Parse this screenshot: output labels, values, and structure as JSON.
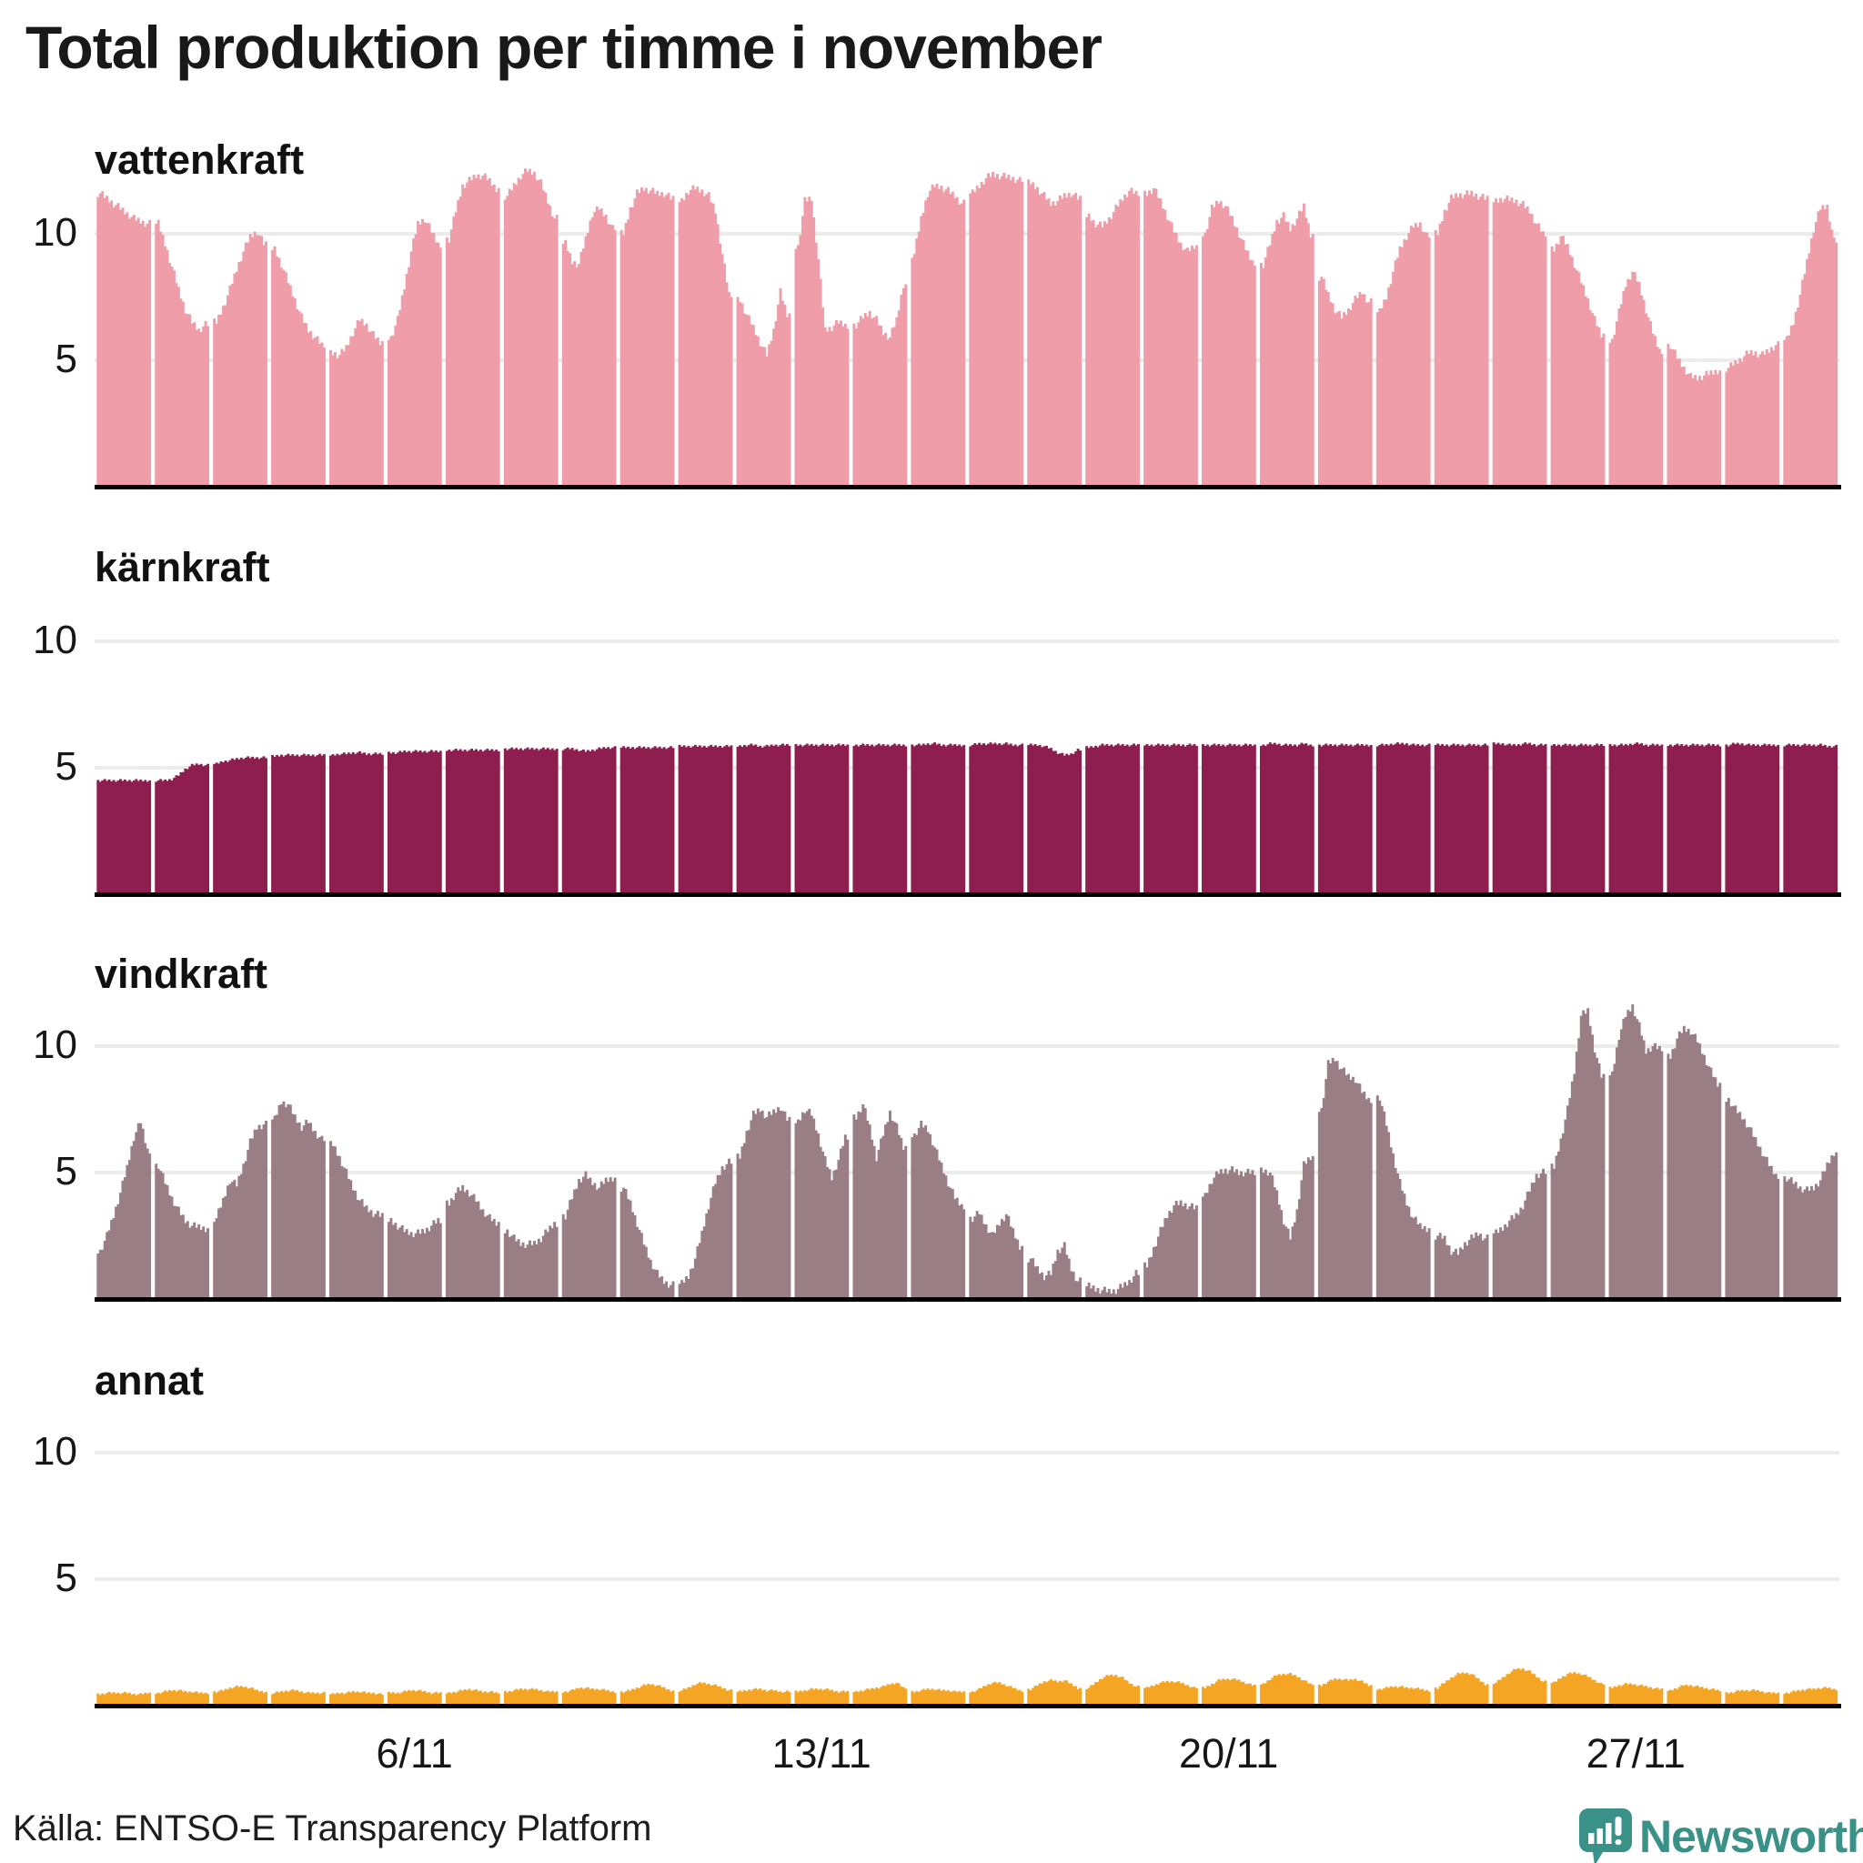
{
  "title": "Total produktion per timme i november",
  "source": "Källa: ENTSO-E Transparency Platform",
  "logo": {
    "brand": "Newsworthy",
    "color": "#3A9188"
  },
  "axis": {
    "y_ticks": [
      5,
      10
    ],
    "x_tick_labels": [
      "6/11",
      "13/11",
      "20/11",
      "27/11"
    ],
    "x_tick_days": [
      6,
      13,
      20,
      27
    ],
    "x_range_days": 30
  },
  "chart_data": [
    {
      "type": "area",
      "title": "vattenkraft",
      "color": "#EF9DA9",
      "ylim": [
        0,
        14
      ],
      "points_per_day": 8,
      "days": [
        [
          11.6,
          11.4,
          11.2,
          11.0,
          10.8,
          10.6,
          10.5,
          10.4
        ],
        [
          10.4,
          9.6,
          8.7,
          7.8,
          7.0,
          6.5,
          6.2,
          6.4
        ],
        [
          6.5,
          7.1,
          7.8,
          8.6,
          9.3,
          9.9,
          10.1,
          9.6
        ],
        [
          9.4,
          8.8,
          8.1,
          7.4,
          6.7,
          6.2,
          5.9,
          5.6
        ],
        [
          5.3,
          5.2,
          5.5,
          6.1,
          6.6,
          6.4,
          6.0,
          5.7
        ],
        [
          5.9,
          6.6,
          7.9,
          9.3,
          10.4,
          10.6,
          10.1,
          9.6
        ],
        [
          9.8,
          10.9,
          11.9,
          12.1,
          12.3,
          12.3,
          12.1,
          11.8
        ],
        [
          11.5,
          11.9,
          12.3,
          12.5,
          12.4,
          12.0,
          11.3,
          10.6
        ],
        [
          9.6,
          8.9,
          8.8,
          9.8,
          10.8,
          11.0,
          10.7,
          10.2
        ],
        [
          10.0,
          11.0,
          11.6,
          11.8,
          11.7,
          11.6,
          11.6,
          11.4
        ],
        [
          11.3,
          11.7,
          11.8,
          11.7,
          11.5,
          10.9,
          9.2,
          7.6
        ],
        [
          7.4,
          6.8,
          6.3,
          5.7,
          5.2,
          6.2,
          7.7,
          6.8
        ],
        [
          9.5,
          11.3,
          11.4,
          9.0,
          6.2,
          6.3,
          6.5,
          6.4
        ],
        [
          6.4,
          6.7,
          6.9,
          6.6,
          6.1,
          5.9,
          6.6,
          8.0
        ],
        [
          9.2,
          10.6,
          11.6,
          11.9,
          11.85,
          11.7,
          11.5,
          11.2
        ],
        [
          11.6,
          11.9,
          12.2,
          12.35,
          12.3,
          12.25,
          12.2,
          12.1
        ],
        [
          12.0,
          11.8,
          11.5,
          11.2,
          11.3,
          11.5,
          11.6,
          11.4
        ],
        [
          10.7,
          10.4,
          10.3,
          10.6,
          11.0,
          11.4,
          11.7,
          11.6
        ],
        [
          11.6,
          11.8,
          11.3,
          10.7,
          10.1,
          9.6,
          9.3,
          9.5
        ],
        [
          10.0,
          11.0,
          11.3,
          11.1,
          10.6,
          10.0,
          9.4,
          8.9
        ],
        [
          8.8,
          9.6,
          10.5,
          10.7,
          10.2,
          10.6,
          11.1,
          10.0
        ],
        [
          8.3,
          7.6,
          7.0,
          6.7,
          7.0,
          7.4,
          7.7,
          7.3
        ],
        [
          6.9,
          7.5,
          8.5,
          9.4,
          9.9,
          10.3,
          10.4,
          9.9
        ],
        [
          10.0,
          10.9,
          11.4,
          11.55,
          11.55,
          11.6,
          11.5,
          11.4
        ],
        [
          11.3,
          11.4,
          11.35,
          11.3,
          11.15,
          10.9,
          10.4,
          10.0
        ],
        [
          9.4,
          9.9,
          9.5,
          8.8,
          8.1,
          7.4,
          6.6,
          6.0
        ],
        [
          5.8,
          6.9,
          8.0,
          8.5,
          8.0,
          7.0,
          6.1,
          5.4
        ],
        [
          5.6,
          5.1,
          4.7,
          4.35,
          4.3,
          4.4,
          4.5,
          4.6
        ],
        [
          4.7,
          4.9,
          5.1,
          5.3,
          5.3,
          5.2,
          5.4,
          5.6
        ],
        [
          5.8,
          6.5,
          7.6,
          8.9,
          10.2,
          11.0,
          11.1,
          9.7
        ]
      ]
    },
    {
      "type": "area",
      "title": "kärnkraft",
      "color": "#8E1E4F",
      "ylim": [
        0,
        14
      ],
      "points_per_day": 8,
      "days": [
        [
          4.5,
          4.5,
          4.5,
          4.5,
          4.5,
          4.5,
          4.5,
          4.5
        ],
        [
          4.5,
          4.5,
          4.55,
          4.7,
          4.95,
          5.1,
          5.15,
          5.1
        ],
        [
          5.15,
          5.25,
          5.3,
          5.35,
          5.4,
          5.4,
          5.4,
          5.4
        ],
        [
          5.45,
          5.5,
          5.5,
          5.5,
          5.5,
          5.5,
          5.5,
          5.5
        ],
        [
          5.5,
          5.55,
          5.55,
          5.6,
          5.6,
          5.55,
          5.55,
          5.55
        ],
        [
          5.6,
          5.6,
          5.65,
          5.65,
          5.65,
          5.65,
          5.65,
          5.65
        ],
        [
          5.7,
          5.7,
          5.7,
          5.7,
          5.7,
          5.7,
          5.7,
          5.7
        ],
        [
          5.75,
          5.75,
          5.75,
          5.75,
          5.75,
          5.75,
          5.75,
          5.75
        ],
        [
          5.75,
          5.75,
          5.7,
          5.65,
          5.7,
          5.75,
          5.8,
          5.8
        ],
        [
          5.8,
          5.8,
          5.8,
          5.8,
          5.8,
          5.8,
          5.8,
          5.8
        ],
        [
          5.85,
          5.85,
          5.85,
          5.85,
          5.85,
          5.85,
          5.85,
          5.85
        ],
        [
          5.85,
          5.9,
          5.9,
          5.85,
          5.85,
          5.9,
          5.9,
          5.9
        ],
        [
          5.9,
          5.9,
          5.9,
          5.9,
          5.9,
          5.9,
          5.9,
          5.9
        ],
        [
          5.9,
          5.9,
          5.9,
          5.9,
          5.9,
          5.9,
          5.9,
          5.9
        ],
        [
          5.9,
          5.9,
          5.95,
          5.95,
          5.9,
          5.9,
          5.9,
          5.9
        ],
        [
          5.9,
          5.95,
          5.95,
          5.95,
          5.95,
          5.95,
          5.9,
          5.9
        ],
        [
          5.9,
          5.9,
          5.85,
          5.75,
          5.6,
          5.5,
          5.55,
          5.7
        ],
        [
          5.8,
          5.85,
          5.9,
          5.9,
          5.9,
          5.9,
          5.9,
          5.9
        ],
        [
          5.9,
          5.9,
          5.9,
          5.9,
          5.9,
          5.9,
          5.9,
          5.9
        ],
        [
          5.9,
          5.9,
          5.9,
          5.9,
          5.9,
          5.9,
          5.9,
          5.9
        ],
        [
          5.9,
          5.95,
          5.95,
          5.9,
          5.9,
          5.9,
          5.95,
          5.9
        ],
        [
          5.9,
          5.9,
          5.9,
          5.9,
          5.9,
          5.9,
          5.9,
          5.9
        ],
        [
          5.9,
          5.9,
          5.95,
          5.95,
          5.95,
          5.9,
          5.9,
          5.9
        ],
        [
          5.9,
          5.9,
          5.9,
          5.9,
          5.9,
          5.9,
          5.9,
          5.9
        ],
        [
          5.95,
          5.95,
          5.9,
          5.9,
          5.95,
          5.95,
          5.9,
          5.9
        ],
        [
          5.9,
          5.9,
          5.9,
          5.9,
          5.9,
          5.9,
          5.9,
          5.9
        ],
        [
          5.9,
          5.9,
          5.9,
          5.95,
          5.95,
          5.9,
          5.9,
          5.9
        ],
        [
          5.9,
          5.9,
          5.9,
          5.9,
          5.9,
          5.9,
          5.9,
          5.9
        ],
        [
          5.9,
          5.95,
          5.95,
          5.9,
          5.9,
          5.9,
          5.9,
          5.9
        ],
        [
          5.9,
          5.9,
          5.9,
          5.9,
          5.9,
          5.9,
          5.85,
          5.85
        ]
      ]
    },
    {
      "type": "area",
      "title": "vindkraft",
      "color": "#9A7E85",
      "ylim": [
        0,
        14
      ],
      "points_per_day": 8,
      "days": [
        [
          1.9,
          2.5,
          3.3,
          4.2,
          5.2,
          6.4,
          7.0,
          5.9
        ],
        [
          5.3,
          4.6,
          4.0,
          3.5,
          3.1,
          2.9,
          2.85,
          2.8
        ],
        [
          3.2,
          3.9,
          4.7,
          4.5,
          5.3,
          6.2,
          6.8,
          6.9
        ],
        [
          7.1,
          7.8,
          7.7,
          7.2,
          6.8,
          7.0,
          6.6,
          6.3
        ],
        [
          6.1,
          5.6,
          5.0,
          4.4,
          3.9,
          3.6,
          3.4,
          3.3
        ],
        [
          3.1,
          2.9,
          2.7,
          2.6,
          2.6,
          2.7,
          2.9,
          3.1
        ],
        [
          3.8,
          4.2,
          4.4,
          4.2,
          3.9,
          3.5,
          3.2,
          3.0
        ],
        [
          2.7,
          2.4,
          2.2,
          2.15,
          2.2,
          2.4,
          2.7,
          3.0
        ],
        [
          3.3,
          4.0,
          4.7,
          4.9,
          4.6,
          4.4,
          4.7,
          4.8
        ],
        [
          4.4,
          3.8,
          3.0,
          2.2,
          1.5,
          1.0,
          0.7,
          0.55
        ],
        [
          0.6,
          0.9,
          1.6,
          2.6,
          3.7,
          4.6,
          5.2,
          5.4
        ],
        [
          5.6,
          6.6,
          7.3,
          7.5,
          7.2,
          7.4,
          7.6,
          7.1
        ],
        [
          7.0,
          7.5,
          7.3,
          6.5,
          5.5,
          4.8,
          5.5,
          6.4
        ],
        [
          7.2,
          7.7,
          6.8,
          5.6,
          6.5,
          7.4,
          6.8,
          6.0
        ],
        [
          6.5,
          6.9,
          6.7,
          6.0,
          5.3,
          4.6,
          4.0,
          3.7
        ],
        [
          3.2,
          3.4,
          2.9,
          2.5,
          3.0,
          3.35,
          2.7,
          2.1
        ],
        [
          1.6,
          1.2,
          0.9,
          1.0,
          1.9,
          2.1,
          1.2,
          0.7
        ],
        [
          0.5,
          0.4,
          0.35,
          0.3,
          0.35,
          0.5,
          0.7,
          1.0
        ],
        [
          1.3,
          2.0,
          2.7,
          3.3,
          3.7,
          3.8,
          3.7,
          3.6
        ],
        [
          4.1,
          4.7,
          5.0,
          5.1,
          5.1,
          5.0,
          5.0,
          5.0
        ],
        [
          5.1,
          5.0,
          4.2,
          3.1,
          2.4,
          3.5,
          5.3,
          5.6
        ],
        [
          7.5,
          9.3,
          9.5,
          9.1,
          8.8,
          8.7,
          8.2,
          7.9
        ],
        [
          8.0,
          6.9,
          5.7,
          4.6,
          3.8,
          3.2,
          2.9,
          2.8
        ],
        [
          2.5,
          2.4,
          1.9,
          1.8,
          2.2,
          2.4,
          2.6,
          2.4
        ],
        [
          2.6,
          2.8,
          3.1,
          3.3,
          3.7,
          4.3,
          4.9,
          5.0
        ],
        [
          5.2,
          6.3,
          7.5,
          9.0,
          11.2,
          11.4,
          9.9,
          8.8
        ],
        [
          8.9,
          10.4,
          11.2,
          11.6,
          10.8,
          9.8,
          10.0,
          9.9
        ],
        [
          9.6,
          10.3,
          10.7,
          10.6,
          10.2,
          9.6,
          9.0,
          8.5
        ],
        [
          7.9,
          7.5,
          7.2,
          6.8,
          6.3,
          5.8,
          5.3,
          4.9
        ],
        [
          4.8,
          4.6,
          4.4,
          4.3,
          4.4,
          4.7,
          5.3,
          5.8
        ]
      ]
    },
    {
      "type": "area",
      "title": "annat",
      "color": "#F5A524",
      "ylim": [
        0,
        14
      ],
      "points_per_day": 8,
      "days": [
        [
          0.45,
          0.5,
          0.5,
          0.5,
          0.5,
          0.45,
          0.45,
          0.5
        ],
        [
          0.5,
          0.55,
          0.6,
          0.6,
          0.55,
          0.55,
          0.5,
          0.5
        ],
        [
          0.55,
          0.6,
          0.7,
          0.75,
          0.75,
          0.7,
          0.6,
          0.55
        ],
        [
          0.5,
          0.55,
          0.6,
          0.6,
          0.55,
          0.5,
          0.5,
          0.5
        ],
        [
          0.45,
          0.5,
          0.5,
          0.55,
          0.55,
          0.5,
          0.5,
          0.45
        ],
        [
          0.5,
          0.5,
          0.55,
          0.6,
          0.6,
          0.55,
          0.5,
          0.5
        ],
        [
          0.5,
          0.55,
          0.6,
          0.65,
          0.6,
          0.55,
          0.55,
          0.5
        ],
        [
          0.55,
          0.6,
          0.65,
          0.65,
          0.65,
          0.6,
          0.55,
          0.55
        ],
        [
          0.55,
          0.6,
          0.7,
          0.7,
          0.65,
          0.65,
          0.6,
          0.55
        ],
        [
          0.55,
          0.6,
          0.7,
          0.8,
          0.85,
          0.8,
          0.7,
          0.6
        ],
        [
          0.6,
          0.7,
          0.85,
          0.9,
          0.85,
          0.8,
          0.7,
          0.6
        ],
        [
          0.55,
          0.6,
          0.65,
          0.65,
          0.6,
          0.6,
          0.55,
          0.55
        ],
        [
          0.55,
          0.6,
          0.65,
          0.65,
          0.65,
          0.6,
          0.55,
          0.55
        ],
        [
          0.55,
          0.6,
          0.65,
          0.7,
          0.75,
          0.85,
          0.9,
          0.7
        ],
        [
          0.55,
          0.6,
          0.65,
          0.65,
          0.6,
          0.6,
          0.55,
          0.55
        ],
        [
          0.55,
          0.65,
          0.8,
          0.9,
          0.9,
          0.8,
          0.7,
          0.6
        ],
        [
          0.65,
          0.8,
          0.95,
          1.0,
          0.95,
          1.0,
          0.85,
          0.7
        ],
        [
          0.7,
          0.9,
          1.1,
          1.2,
          1.2,
          1.1,
          0.9,
          0.75
        ],
        [
          0.7,
          0.8,
          0.9,
          0.95,
          0.95,
          0.9,
          0.8,
          0.7
        ],
        [
          0.7,
          0.85,
          1.0,
          1.05,
          1.05,
          1.0,
          0.9,
          0.8
        ],
        [
          0.85,
          1.05,
          1.2,
          1.25,
          1.25,
          1.15,
          1.0,
          0.85
        ],
        [
          0.8,
          0.95,
          1.05,
          1.05,
          1.0,
          1.05,
          0.95,
          0.8
        ],
        [
          0.65,
          0.7,
          0.75,
          0.75,
          0.7,
          0.7,
          0.65,
          0.6
        ],
        [
          0.7,
          0.9,
          1.1,
          1.25,
          1.3,
          1.25,
          1.05,
          0.85
        ],
        [
          0.9,
          1.1,
          1.3,
          1.45,
          1.45,
          1.35,
          1.15,
          0.95
        ],
        [
          0.9,
          1.1,
          1.25,
          1.3,
          1.25,
          1.15,
          1.0,
          0.85
        ],
        [
          0.7,
          0.8,
          0.85,
          0.85,
          0.8,
          0.75,
          0.7,
          0.65
        ],
        [
          0.6,
          0.7,
          0.8,
          0.8,
          0.75,
          0.7,
          0.65,
          0.6
        ],
        [
          0.5,
          0.55,
          0.6,
          0.6,
          0.6,
          0.55,
          0.5,
          0.5
        ],
        [
          0.5,
          0.55,
          0.6,
          0.65,
          0.65,
          0.7,
          0.7,
          0.65
        ]
      ]
    }
  ],
  "theme": {
    "background": "#FFFFFF",
    "gridline": "#ECECEC",
    "baseline": "#000000",
    "text": "#191919"
  }
}
